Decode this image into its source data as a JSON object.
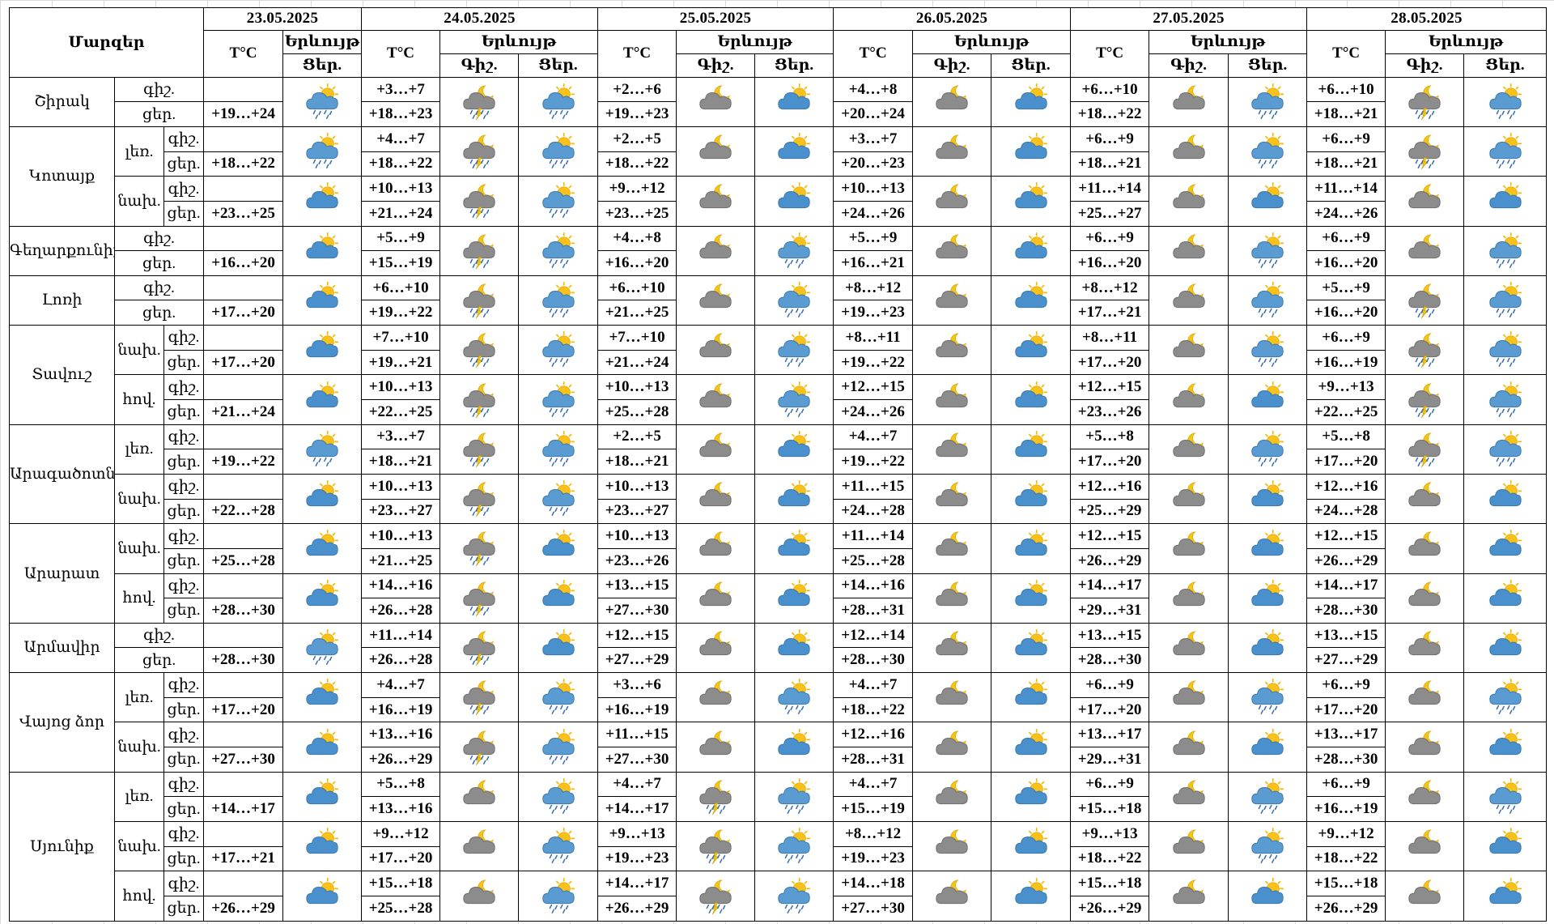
{
  "header": {
    "regions_label": "Մարզեր",
    "dates": [
      "23.05.2025",
      "24.05.2025",
      "25.05.2025",
      "26.05.2025",
      "27.05.2025",
      "28.05.2025"
    ],
    "temp_label": "T°C",
    "sky_label": "Երևույթ",
    "night_label": "Գիշ.",
    "day_label": "Ցեր."
  },
  "icon_legend": {
    "sun-cloud": "sun-behind-cloud-icon",
    "sun-rain": "sun-cloud-rain-icon",
    "moon-cloud": "moon-behind-cloud-icon",
    "moon-rain": "moon-cloud-rain-icon",
    "storm": "thunderstorm-cloud-icon"
  },
  "colors": {
    "grid": "#d9d9d9",
    "cloud_day": "#4a90cc",
    "cloud_night": "#8c8c8c",
    "sun": "#f5b800",
    "moon": "#f5c518",
    "rain": "#3a6fb0",
    "bolt": "#f5c400"
  },
  "regions": [
    {
      "name": "Շիրակ",
      "groups": [
        {
          "part": "",
          "night": {
            "label": "գիշ.",
            "temps": [
              "",
              "+3…+7",
              "+2…+6",
              "+4…+8",
              "+6…+10",
              "+6…+10"
            ]
          },
          "day": {
            "label": "ցեր.",
            "temps": [
              "+19…+24",
              "+18…+23",
              "+19…+23",
              "+20…+24",
              "+18…+22",
              "+18…+21"
            ]
          },
          "icons": [
            "sun-rain",
            "storm",
            "sun-rain",
            "moon-cloud",
            "sun-cloud",
            "moon-cloud",
            "sun-cloud",
            "moon-cloud",
            "sun-rain",
            "storm",
            "sun-rain"
          ]
        }
      ]
    },
    {
      "name": "Կոտայք",
      "groups": [
        {
          "part": "լեռ.",
          "night": {
            "label": "գիշ.",
            "temps": [
              "",
              "+4…+7",
              "+2…+5",
              "+3…+7",
              "+6…+9",
              "+6…+9"
            ]
          },
          "day": {
            "label": "ցեր.",
            "temps": [
              "+18…+22",
              "+18…+22",
              "+18…+22",
              "+20…+23",
              "+18…+21",
              "+18…+21"
            ]
          },
          "icons": [
            "sun-rain",
            "storm",
            "sun-rain",
            "moon-cloud",
            "sun-cloud",
            "moon-cloud",
            "sun-cloud",
            "moon-cloud",
            "sun-rain",
            "storm",
            "sun-rain"
          ]
        },
        {
          "part": "նախ.",
          "night": {
            "label": "գիշ.",
            "temps": [
              "",
              "+10…+13",
              "+9…+12",
              "+10…+13",
              "+11…+14",
              "+11…+14"
            ]
          },
          "day": {
            "label": "ցեր.",
            "temps": [
              "+23…+25",
              "+21…+24",
              "+23…+25",
              "+24…+26",
              "+25…+27",
              "+24…+26"
            ]
          },
          "icons": [
            "sun-cloud",
            "storm",
            "sun-rain",
            "moon-cloud",
            "sun-cloud",
            "moon-cloud",
            "sun-cloud",
            "moon-cloud",
            "sun-cloud",
            "moon-cloud",
            "sun-cloud"
          ]
        }
      ]
    },
    {
      "name": "Գեղարքունիք",
      "groups": [
        {
          "part": "",
          "night": {
            "label": "գիշ.",
            "temps": [
              "",
              "+5…+9",
              "+4…+8",
              "+5…+9",
              "+6…+9",
              "+6…+9"
            ]
          },
          "day": {
            "label": "ցեր.",
            "temps": [
              "+16…+20",
              "+15…+19",
              "+16…+20",
              "+16…+21",
              "+16…+20",
              "+16…+20"
            ]
          },
          "icons": [
            "sun-cloud",
            "storm",
            "sun-rain",
            "moon-cloud",
            "sun-rain",
            "moon-cloud",
            "sun-cloud",
            "moon-cloud",
            "sun-rain",
            "moon-cloud",
            "sun-rain"
          ]
        }
      ]
    },
    {
      "name": "Լոռի",
      "groups": [
        {
          "part": "",
          "night": {
            "label": "գիշ.",
            "temps": [
              "",
              "+6…+10",
              "+6…+10",
              "+8…+12",
              "+8…+12",
              "+5…+9"
            ]
          },
          "day": {
            "label": "ցեր.",
            "temps": [
              "+17…+20",
              "+19…+22",
              "+21…+25",
              "+19…+23",
              "+17…+21",
              "+16…+20"
            ]
          },
          "icons": [
            "sun-cloud",
            "storm",
            "sun-rain",
            "moon-cloud",
            "sun-rain",
            "moon-cloud",
            "sun-cloud",
            "moon-cloud",
            "sun-rain",
            "storm",
            "sun-rain"
          ]
        }
      ]
    },
    {
      "name": "Տավուշ",
      "groups": [
        {
          "part": "նախ.",
          "night": {
            "label": "գիշ.",
            "temps": [
              "",
              "+7…+10",
              "+7…+10",
              "+8…+11",
              "+8…+11",
              "+6…+9"
            ]
          },
          "day": {
            "label": "ցեր.",
            "temps": [
              "+17…+20",
              "+19…+21",
              "+21…+24",
              "+19…+22",
              "+17…+20",
              "+16…+19"
            ]
          },
          "icons": [
            "sun-cloud",
            "storm",
            "sun-rain",
            "moon-cloud",
            "sun-rain",
            "moon-cloud",
            "sun-cloud",
            "moon-cloud",
            "sun-rain",
            "storm",
            "sun-rain"
          ]
        },
        {
          "part": "հով.",
          "night": {
            "label": "գիշ.",
            "temps": [
              "",
              "+10…+13",
              "+10…+13",
              "+12…+15",
              "+12…+15",
              "+9…+13"
            ]
          },
          "day": {
            "label": "ցեր.",
            "temps": [
              "+21…+24",
              "+22…+25",
              "+25…+28",
              "+24…+26",
              "+23…+26",
              "+22…+25"
            ]
          },
          "icons": [
            "sun-cloud",
            "storm",
            "sun-rain",
            "moon-cloud",
            "sun-rain",
            "moon-cloud",
            "sun-cloud",
            "moon-cloud",
            "sun-cloud",
            "storm",
            "sun-rain"
          ]
        }
      ]
    },
    {
      "name": "Արագածոտն",
      "groups": [
        {
          "part": "լեռ.",
          "night": {
            "label": "գիշ.",
            "temps": [
              "",
              "+3…+7",
              "+2…+5",
              "+4…+7",
              "+5…+8",
              "+5…+8"
            ]
          },
          "day": {
            "label": "ցեր.",
            "temps": [
              "+19…+22",
              "+18…+21",
              "+18…+21",
              "+19…+22",
              "+17…+20",
              "+17…+20"
            ]
          },
          "icons": [
            "sun-rain",
            "storm",
            "sun-rain",
            "moon-cloud",
            "sun-cloud",
            "moon-cloud",
            "sun-cloud",
            "moon-cloud",
            "sun-rain",
            "storm",
            "sun-rain"
          ]
        },
        {
          "part": "նախ.",
          "night": {
            "label": "գիշ.",
            "temps": [
              "",
              "+10…+13",
              "+10…+13",
              "+11…+15",
              "+12…+16",
              "+12…+16"
            ]
          },
          "day": {
            "label": "ցեր.",
            "temps": [
              "+22…+28",
              "+23…+27",
              "+23…+27",
              "+24…+28",
              "+25…+29",
              "+24…+28"
            ]
          },
          "icons": [
            "sun-cloud",
            "storm",
            "sun-rain",
            "moon-cloud",
            "sun-cloud",
            "moon-cloud",
            "sun-cloud",
            "moon-cloud",
            "sun-cloud",
            "moon-cloud",
            "sun-cloud"
          ]
        }
      ]
    },
    {
      "name": "Արարատ",
      "groups": [
        {
          "part": "նախ.",
          "night": {
            "label": "գիշ.",
            "temps": [
              "",
              "+10…+13",
              "+10…+13",
              "+11…+14",
              "+12…+15",
              "+12…+15"
            ]
          },
          "day": {
            "label": "ցեր.",
            "temps": [
              "+25…+28",
              "+21…+25",
              "+23…+26",
              "+25…+28",
              "+26…+29",
              "+26…+29"
            ]
          },
          "icons": [
            "sun-cloud",
            "storm",
            "sun-cloud",
            "moon-cloud",
            "sun-cloud",
            "moon-cloud",
            "sun-cloud",
            "moon-cloud",
            "sun-cloud",
            "moon-cloud",
            "sun-cloud"
          ]
        },
        {
          "part": "հով.",
          "night": {
            "label": "գիշ.",
            "temps": [
              "",
              "+14…+16",
              "+13…+15",
              "+14…+16",
              "+14…+17",
              "+14…+17"
            ]
          },
          "day": {
            "label": "ցեր.",
            "temps": [
              "+28…+30",
              "+26…+28",
              "+27…+30",
              "+28…+31",
              "+29…+31",
              "+28…+30"
            ]
          },
          "icons": [
            "sun-cloud",
            "storm",
            "sun-cloud",
            "moon-cloud",
            "sun-cloud",
            "moon-cloud",
            "sun-cloud",
            "moon-cloud",
            "sun-cloud",
            "moon-cloud",
            "sun-cloud"
          ]
        }
      ]
    },
    {
      "name": "Արմավիր",
      "groups": [
        {
          "part": "",
          "night": {
            "label": "գիշ.",
            "temps": [
              "",
              "+11…+14",
              "+12…+15",
              "+12…+14",
              "+13…+15",
              "+13…+15"
            ]
          },
          "day": {
            "label": "ցեր.",
            "temps": [
              "+28…+30",
              "+26…+28",
              "+27…+29",
              "+28…+30",
              "+28…+30",
              "+27…+29"
            ]
          },
          "icons": [
            "sun-rain",
            "storm",
            "sun-cloud",
            "moon-cloud",
            "sun-cloud",
            "moon-cloud",
            "sun-cloud",
            "moon-cloud",
            "sun-cloud",
            "moon-cloud",
            "sun-cloud"
          ]
        }
      ]
    },
    {
      "name": "Վայոց ձոր",
      "groups": [
        {
          "part": "լեռ.",
          "night": {
            "label": "գիշ.",
            "temps": [
              "",
              "+4…+7",
              "+3…+6",
              "+4…+7",
              "+6…+9",
              "+6…+9"
            ]
          },
          "day": {
            "label": "ցեր.",
            "temps": [
              "+17…+20",
              "+16…+19",
              "+16…+19",
              "+18…+22",
              "+17…+20",
              "+17…+20"
            ]
          },
          "icons": [
            "sun-cloud",
            "storm",
            "sun-rain",
            "moon-cloud",
            "sun-rain",
            "moon-cloud",
            "sun-cloud",
            "moon-cloud",
            "sun-rain",
            "moon-cloud",
            "sun-rain"
          ]
        },
        {
          "part": "նախ.",
          "night": {
            "label": "գիշ.",
            "temps": [
              "",
              "+13…+16",
              "+11…+15",
              "+12…+16",
              "+13…+17",
              "+13…+17"
            ]
          },
          "day": {
            "label": "ցեր.",
            "temps": [
              "+27…+30",
              "+26…+29",
              "+27…+30",
              "+28…+31",
              "+29…+31",
              "+28…+30"
            ]
          },
          "icons": [
            "sun-cloud",
            "storm",
            "sun-rain",
            "moon-cloud",
            "sun-cloud",
            "moon-cloud",
            "sun-cloud",
            "moon-cloud",
            "sun-cloud",
            "moon-cloud",
            "sun-cloud"
          ]
        }
      ]
    },
    {
      "name": "Սյունիք",
      "groups": [
        {
          "part": "լեռ.",
          "night": {
            "label": "գիշ.",
            "temps": [
              "",
              "+5…+8",
              "+4…+7",
              "+4…+7",
              "+6…+9",
              "+6…+9"
            ]
          },
          "day": {
            "label": "ցեր.",
            "temps": [
              "+14…+17",
              "+13…+16",
              "+14…+17",
              "+15…+19",
              "+15…+18",
              "+16…+19"
            ]
          },
          "icons": [
            "sun-cloud",
            "moon-cloud",
            "sun-rain",
            "storm",
            "sun-rain",
            "moon-cloud",
            "sun-cloud",
            "moon-cloud",
            "sun-rain",
            "moon-cloud",
            "sun-rain"
          ]
        },
        {
          "part": "նախ.",
          "night": {
            "label": "գիշ.",
            "temps": [
              "",
              "+9…+12",
              "+9…+13",
              "+8…+12",
              "+9…+13",
              "+9…+12"
            ]
          },
          "day": {
            "label": "ցեր.",
            "temps": [
              "+17…+21",
              "+17…+20",
              "+19…+23",
              "+19…+23",
              "+18…+22",
              "+18…+22"
            ]
          },
          "icons": [
            "sun-cloud",
            "moon-cloud",
            "sun-rain",
            "storm",
            "sun-rain",
            "moon-cloud",
            "sun-cloud",
            "moon-cloud",
            "sun-rain",
            "moon-cloud",
            "sun-cloud"
          ]
        },
        {
          "part": "հով.",
          "night": {
            "label": "գիշ.",
            "temps": [
              "",
              "+15…+18",
              "+14…+17",
              "+14…+18",
              "+15…+18",
              "+15…+18"
            ]
          },
          "day": {
            "label": "ցեր.",
            "temps": [
              "+26…+29",
              "+25…+28",
              "+26…+29",
              "+27…+30",
              "+26…+29",
              "+26…+29"
            ]
          },
          "icons": [
            "sun-cloud",
            "moon-cloud",
            "sun-rain",
            "storm",
            "sun-rain",
            "moon-cloud",
            "sun-cloud",
            "moon-cloud",
            "sun-cloud",
            "moon-cloud",
            "sun-cloud"
          ]
        }
      ]
    }
  ]
}
